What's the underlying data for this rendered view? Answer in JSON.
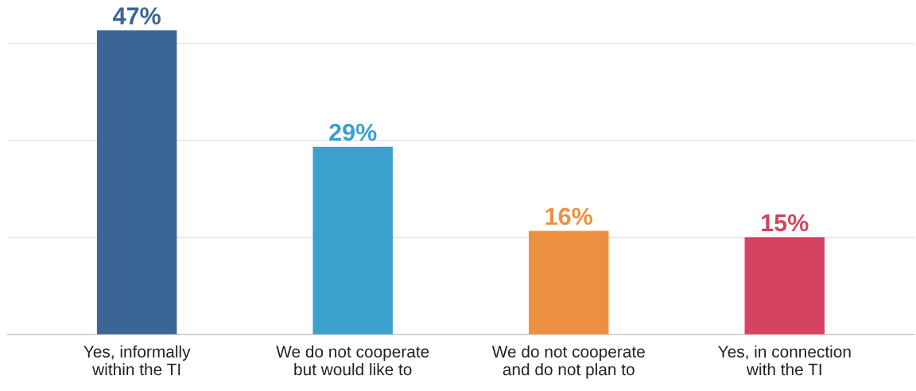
{
  "chart_data": {
    "type": "bar",
    "categories": [
      "Yes, informally\nwithin the TI",
      "We do not cooperate\nbut would like to",
      "We do not cooperate\nand do not plan to",
      "Yes, in connection\nwith the TI"
    ],
    "values": [
      47,
      29,
      16,
      15
    ],
    "colors": [
      "#3a6594",
      "#3ba0cc",
      "#ed8f40",
      "#d4435f"
    ],
    "value_labels": [
      "47%",
      "29%",
      "16%",
      "15%"
    ],
    "yticks": [
      {
        "value": 0,
        "label": null
      },
      {
        "value": 15,
        "label": null
      },
      {
        "value": 30,
        "label": null
      },
      {
        "value": 45,
        "label": null
      }
    ],
    "grid": "y"
  }
}
